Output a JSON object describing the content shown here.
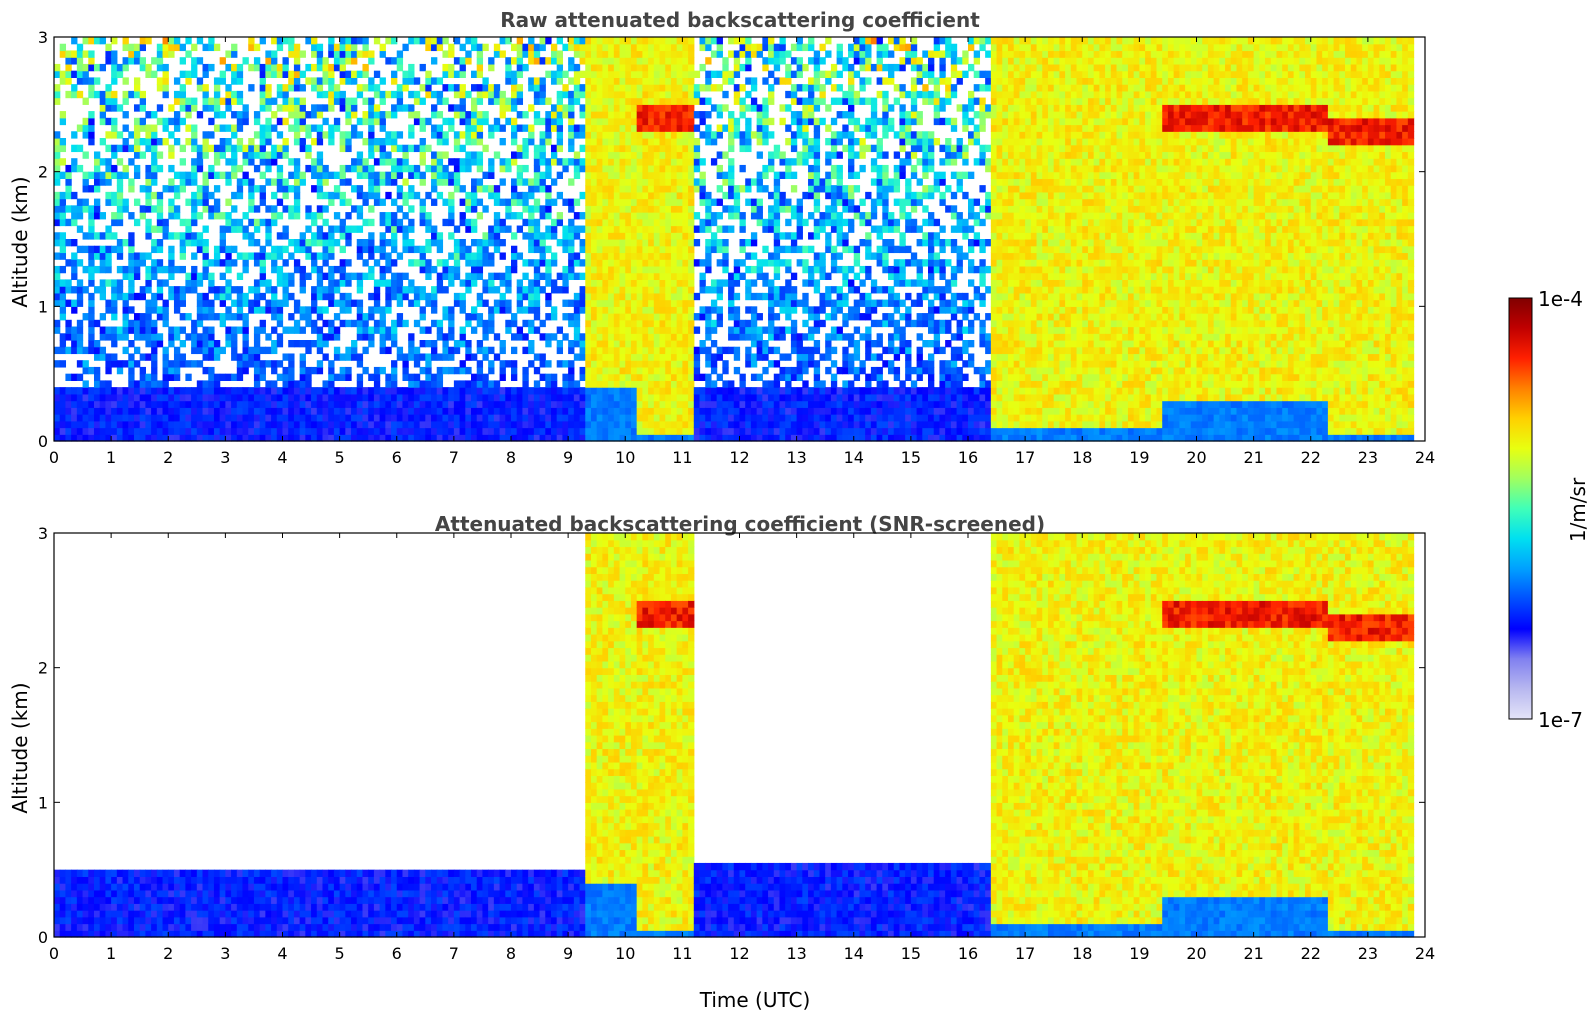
{
  "chart_data": [
    {
      "type": "heatmap",
      "title": "Raw attenuated backscattering coefficient",
      "xlabel": "",
      "ylabel": "Altitude (km)",
      "xlim": [
        0,
        24
      ],
      "ylim": [
        0,
        3
      ],
      "x_ticks": [
        0,
        1,
        2,
        3,
        4,
        5,
        6,
        7,
        8,
        9,
        10,
        11,
        12,
        13,
        14,
        15,
        16,
        17,
        18,
        19,
        20,
        21,
        22,
        23,
        24
      ],
      "y_ticks": [
        0,
        1,
        2,
        3
      ],
      "screened": false,
      "regimes": [
        {
          "x": [
            0,
            9.3
          ],
          "description_level": "low: near-surface aerosol layer 0-0.4 km, noisy background above"
        },
        {
          "x": [
            9.3,
            10.2
          ],
          "cloud_base_km": 0.4
        },
        {
          "x": [
            10.2,
            11.2
          ],
          "cloud_base_km": 0.05,
          "top_layer_km": 2.4
        },
        {
          "x": [
            11.2,
            16.4
          ],
          "description_level": "low: aerosol layer 0-0.5 km"
        },
        {
          "x": [
            16.4,
            19.4
          ],
          "cloud_base_km": 0.1
        },
        {
          "x": [
            19.4,
            22.3
          ],
          "cloud_base_km": 0.3,
          "top_layer_km": 2.4
        },
        {
          "x": [
            22.3,
            23.8
          ],
          "cloud_base_km": 0.05,
          "top_layer_km": 2.3
        }
      ]
    },
    {
      "type": "heatmap",
      "title": "Attenuated backscattering coefficient (SNR-screened)",
      "xlabel": "Time (UTC)",
      "ylabel": "Altitude (km)",
      "xlim": [
        0,
        24
      ],
      "ylim": [
        0,
        3
      ],
      "x_ticks": [
        0,
        1,
        2,
        3,
        4,
        5,
        6,
        7,
        8,
        9,
        10,
        11,
        12,
        13,
        14,
        15,
        16,
        17,
        18,
        19,
        20,
        21,
        22,
        23,
        24
      ],
      "y_ticks": [
        0,
        1,
        2,
        3
      ],
      "screened": true,
      "regimes": [
        {
          "x": [
            0,
            9.3
          ],
          "aerosol_top_km": 0.5
        },
        {
          "x": [
            9.3,
            10.2
          ],
          "cloud_base_km": 0.4
        },
        {
          "x": [
            10.2,
            11.2
          ],
          "cloud_base_km": 0.05,
          "top_layer_km": 2.4
        },
        {
          "x": [
            11.2,
            16.4
          ],
          "aerosol_top_km": 0.55
        },
        {
          "x": [
            16.4,
            19.4
          ],
          "cloud_base_km": 0.1
        },
        {
          "x": [
            19.4,
            22.3
          ],
          "cloud_base_km": 0.3,
          "top_layer_km": 2.4
        },
        {
          "x": [
            22.3,
            23.8
          ],
          "cloud_base_km": 0.05,
          "top_layer_km": 2.3
        }
      ]
    }
  ],
  "colorbar": {
    "label": "1/m/sr",
    "max_label": "1e-4",
    "min_label": "1e-7",
    "scale": "log",
    "range": [
      1e-07,
      0.0001
    ],
    "colormap": "jet",
    "colors": [
      "#e4e4f8",
      "#b8b8f0",
      "#8080f0",
      "#0000ff",
      "#0050ff",
      "#00a0ff",
      "#00e0f0",
      "#40ffb8",
      "#a0ff60",
      "#e8ff10",
      "#ffd000",
      "#ff8000",
      "#ff2000",
      "#c00000",
      "#800000"
    ]
  }
}
